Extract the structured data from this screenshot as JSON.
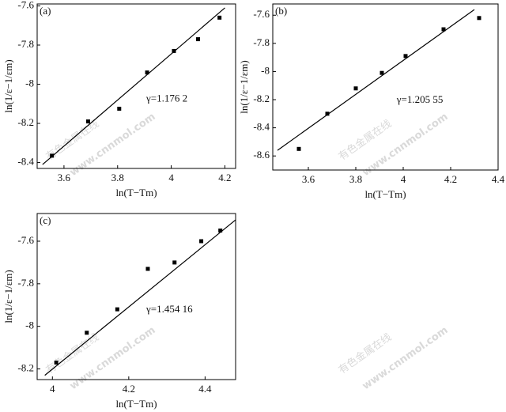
{
  "chart_data": [
    {
      "type": "scatter",
      "panel_label": "(a)",
      "x_label": "ln(T−Tm)",
      "y_label": "ln(1/ε−1/εm)",
      "annotation": "γ=1.176 2",
      "x": [
        3.555,
        3.69,
        3.806,
        3.91,
        4.01,
        4.1,
        4.18
      ],
      "y": [
        -8.365,
        -8.19,
        -8.125,
        -7.94,
        -7.83,
        -7.77,
        -7.66
      ],
      "fit": {
        "x": [
          3.52,
          4.2
        ],
        "y": [
          -8.41,
          -7.61
        ]
      },
      "xlim": [
        3.5,
        4.24
      ],
      "ylim": [
        -8.43,
        -7.59
      ],
      "xticks": [
        3.6,
        3.8,
        4.0,
        4.2
      ],
      "yticks": [
        -7.6,
        -7.8,
        -8.0,
        -8.2,
        -8.4
      ]
    },
    {
      "type": "scatter",
      "panel_label": "(b)",
      "x_label": "ln(T−Tm)",
      "y_label": "ln(1/ε−1/εm)",
      "annotation": "γ=1.205 55",
      "x": [
        3.56,
        3.68,
        3.8,
        3.91,
        4.01,
        4.17,
        4.32
      ],
      "y": [
        -8.55,
        -8.3,
        -8.12,
        -8.01,
        -7.89,
        -7.7,
        -7.62
      ],
      "fit": {
        "x": [
          3.47,
          4.3
        ],
        "y": [
          -8.56,
          -7.56
        ]
      },
      "xlim": [
        3.45,
        4.4
      ],
      "ylim": [
        -8.7,
        -7.52
      ],
      "xticks": [
        3.6,
        3.8,
        4.0,
        4.2,
        4.4
      ],
      "yticks": [
        -7.6,
        -7.8,
        -8.0,
        -8.2,
        -8.4,
        -8.6
      ]
    },
    {
      "type": "scatter",
      "panel_label": "(c)",
      "x_label": "ln(T−Tm)",
      "y_label": "ln(1/ε−1/εm)",
      "annotation": "γ=1.454 16",
      "x": [
        4.01,
        4.09,
        4.17,
        4.25,
        4.32,
        4.39,
        4.44
      ],
      "y": [
        -8.17,
        -8.03,
        -7.92,
        -7.73,
        -7.7,
        -7.6,
        -7.55
      ],
      "fit": {
        "x": [
          3.98,
          4.48
        ],
        "y": [
          -8.23,
          -7.5
        ]
      },
      "xlim": [
        3.96,
        4.48
      ],
      "ylim": [
        -8.25,
        -7.47
      ],
      "xticks": [
        4.0,
        4.2,
        4.4
      ],
      "yticks": [
        -7.6,
        -7.8,
        -8.0,
        -8.2
      ]
    }
  ],
  "watermark": [
    "有色金属在线",
    "www.cnnmol.com"
  ]
}
